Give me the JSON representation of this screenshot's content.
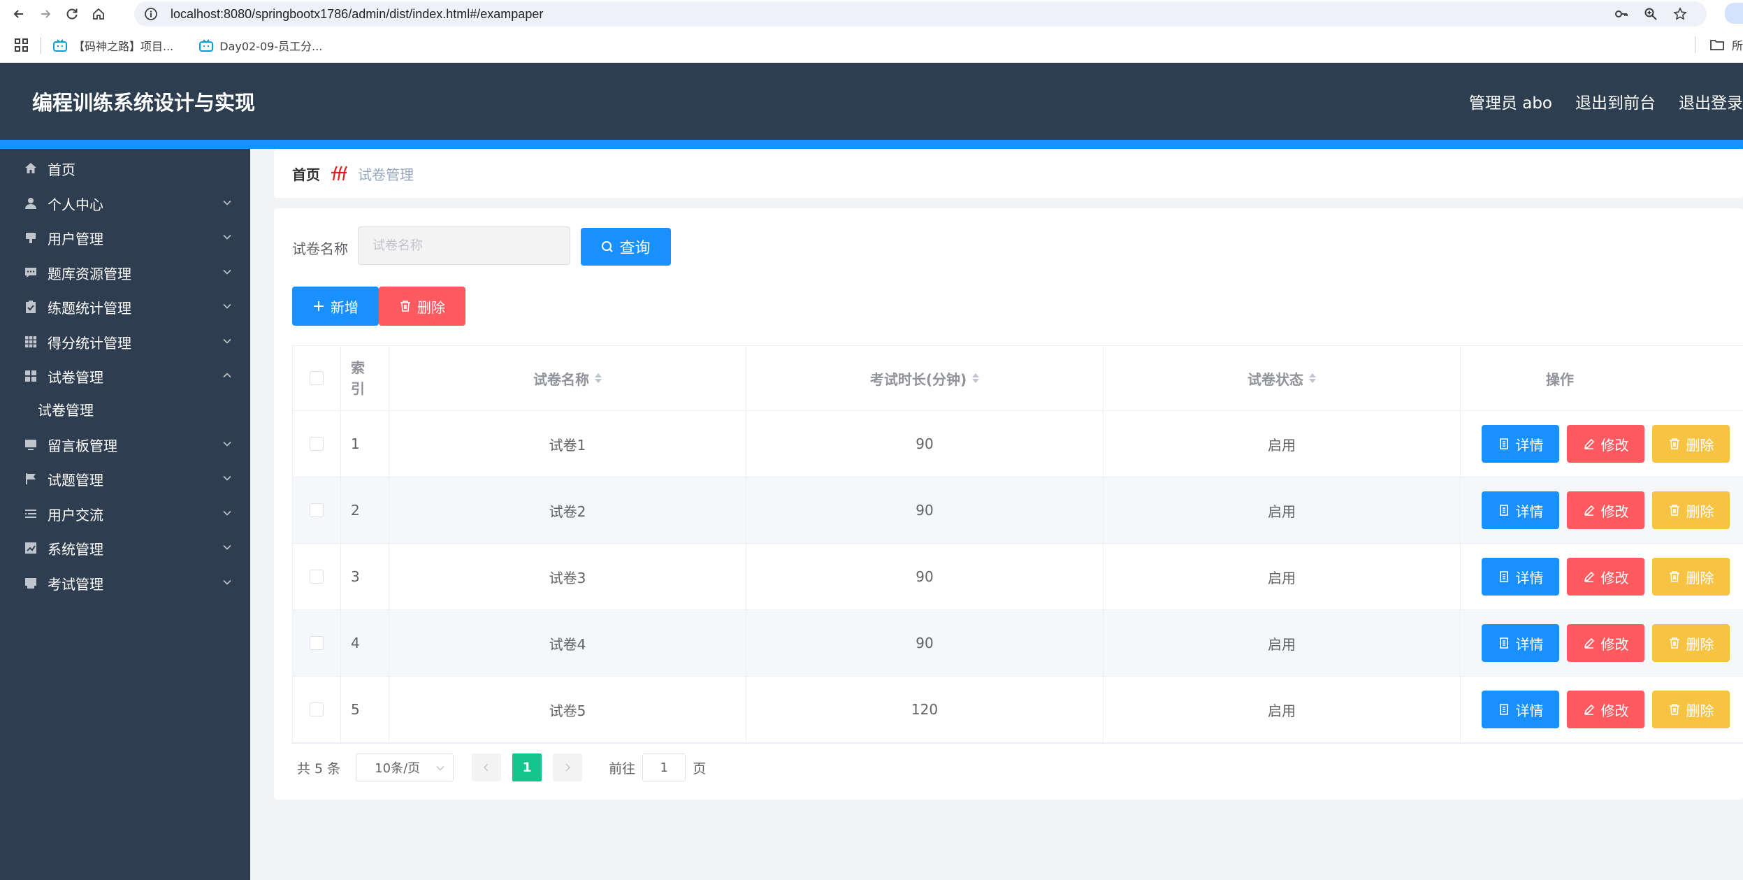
{
  "browser": {
    "url": "localhost:8080/springbootx1786/admin/dist/index.html#/exampaper",
    "bookmarks": [
      {
        "label": "【码神之路】项目..."
      },
      {
        "label": "Day02-09-员工分..."
      }
    ],
    "bookmarks_right_label": "所"
  },
  "header": {
    "title": "编程训练系统设计与实现",
    "user_label": "管理员 abo",
    "front_label": "退出到前台",
    "logout_label": "退出登录"
  },
  "sidebar": {
    "items": [
      {
        "label": "首页",
        "icon": "home-icon"
      },
      {
        "label": "个人中心",
        "icon": "user-icon"
      },
      {
        "label": "用户管理",
        "icon": "stamp-icon"
      },
      {
        "label": "题库资源管理",
        "icon": "chat-icon"
      },
      {
        "label": "练题统计管理",
        "icon": "clipboard-icon"
      },
      {
        "label": "得分统计管理",
        "icon": "grid-icon"
      },
      {
        "label": "试卷管理",
        "icon": "apps-icon"
      },
      {
        "label": "试卷管理"
      },
      {
        "label": "留言板管理",
        "icon": "monitor-icon"
      },
      {
        "label": "试题管理",
        "icon": "flag-icon"
      },
      {
        "label": "用户交流",
        "icon": "list-icon"
      },
      {
        "label": "系统管理",
        "icon": "chart-icon"
      },
      {
        "label": "考试管理",
        "icon": "printer-icon"
      }
    ]
  },
  "breadcrumb": {
    "home": "首页",
    "current": "试卷管理"
  },
  "search": {
    "label": "试卷名称",
    "placeholder": "试卷名称",
    "button_label": "查询"
  },
  "actions": {
    "add_label": "新增",
    "delete_label": "删除"
  },
  "table": {
    "headers": {
      "index": [
        "索",
        "引"
      ],
      "name": "试卷名称",
      "duration": "考试时长(分钟)",
      "status": "试卷状态",
      "ops": "操作"
    },
    "op_labels": {
      "detail": "详情",
      "edit": "修改",
      "delete": "删除"
    },
    "rows": [
      {
        "index": "1",
        "name": "试卷1",
        "duration": "90",
        "status": "启用"
      },
      {
        "index": "2",
        "name": "试卷2",
        "duration": "90",
        "status": "启用"
      },
      {
        "index": "3",
        "name": "试卷3",
        "duration": "90",
        "status": "启用"
      },
      {
        "index": "4",
        "name": "试卷4",
        "duration": "90",
        "status": "启用"
      },
      {
        "index": "5",
        "name": "试卷5",
        "duration": "120",
        "status": "启用"
      }
    ]
  },
  "pagination": {
    "total_text": "共 5 条",
    "page_size": "10条/页",
    "current_page": "1",
    "goto_label": "前往",
    "goto_value": "1",
    "page_unit": "页"
  },
  "colors": {
    "header_bg": "#2c3e50",
    "sidebar_bg": "#2f3d50",
    "accent": "#1890ff",
    "danger": "#ff5a5f",
    "warning": "#f6c342",
    "pager_active": "#13c48b"
  }
}
